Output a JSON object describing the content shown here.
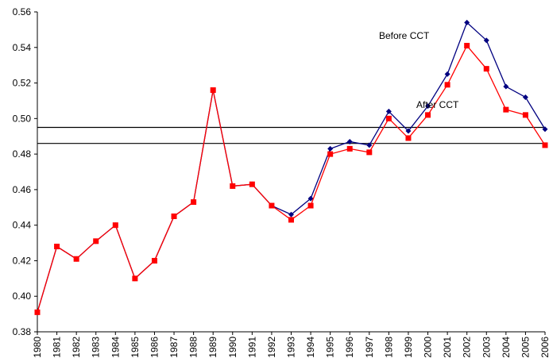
{
  "chart_data": {
    "type": "line",
    "categories": [
      "1980",
      "1981",
      "1982",
      "1983",
      "1984",
      "1985",
      "1986",
      "1987",
      "1988",
      "1989",
      "1990",
      "1991",
      "1992",
      "1993",
      "1994",
      "1995",
      "1996",
      "1997",
      "1998",
      "1999",
      "2000",
      "2001",
      "2002",
      "2003",
      "2004",
      "2005",
      "2006"
    ],
    "series": [
      {
        "name": "Before CCT",
        "color": "#000080",
        "marker": "diamond",
        "values": [
          0.391,
          0.428,
          0.421,
          0.431,
          0.44,
          0.41,
          0.42,
          0.445,
          0.453,
          0.516,
          0.462,
          0.463,
          0.451,
          0.446,
          0.455,
          0.483,
          0.487,
          0.485,
          0.504,
          0.493,
          0.507,
          0.525,
          0.554,
          0.544,
          0.518,
          0.512,
          0.494
        ]
      },
      {
        "name": "After CCT",
        "color": "#ff0000",
        "marker": "square",
        "values": [
          0.391,
          0.428,
          0.421,
          0.431,
          0.44,
          0.41,
          0.42,
          0.445,
          0.453,
          0.516,
          0.462,
          0.463,
          0.451,
          0.443,
          0.451,
          0.48,
          0.483,
          0.481,
          0.5,
          0.489,
          0.502,
          0.519,
          0.541,
          0.528,
          0.505,
          0.502,
          0.485
        ]
      }
    ],
    "reference_lines": [
      0.495,
      0.486
    ],
    "ylim": [
      0.38,
      0.56
    ],
    "yticks": [
      0.38,
      {
        "value": 0.4,
        "label": "0.40"
      },
      0.42,
      0.44,
      0.46,
      0.48,
      {
        "value": 0.5,
        "label": "0.50"
      },
      0.52,
      0.54,
      0.56
    ],
    "grid": false
  }
}
